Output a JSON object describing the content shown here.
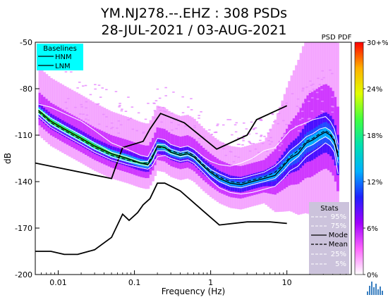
{
  "title_line1": "YM.NJ278.--.EHZ : 308 PSDs",
  "title_line2": "28-JUL-2021 / 03-AUG-2021",
  "chart_data": {
    "type": "heatmap",
    "xlabel": "Frequency (Hz)",
    "ylabel": "dB",
    "x_scale": "log",
    "xlim": [
      0.005,
      70
    ],
    "ylim": [
      -200,
      -50
    ],
    "x_ticks": [
      {
        "value": 0.01,
        "label": "0.01"
      },
      {
        "value": 0.1,
        "label": "0.1"
      },
      {
        "value": 1,
        "label": "1"
      },
      {
        "value": 10,
        "label": "10"
      }
    ],
    "y_ticks": [
      {
        "value": -50,
        "label": "-50"
      },
      {
        "value": -80,
        "label": "-80"
      },
      {
        "value": -110,
        "label": "-110"
      },
      {
        "value": -140,
        "label": "-140"
      },
      {
        "value": -170,
        "label": "-170"
      },
      {
        "value": -200,
        "label": "-200"
      }
    ],
    "colorbar": {
      "title": "PSD PDF",
      "range": [
        0,
        30
      ],
      "ticks": [
        "0%",
        "6%",
        "12%",
        "18%",
        "24%",
        "30+%"
      ],
      "colors": [
        "#ffffff",
        "#ff66ff",
        "#a000ff",
        "#2020ff",
        "#00b0ff",
        "#00e0b0",
        "#40ff40",
        "#e0ff00",
        "#ffb000",
        "#ff0000"
      ]
    },
    "baselines": {
      "title": "Baselines",
      "entries": [
        "HNM",
        "LNM"
      ],
      "background": "#00ffff",
      "HNM": [
        [
          0.005,
          -128
        ],
        [
          0.05,
          -138
        ],
        [
          0.07,
          -118
        ],
        [
          0.13,
          -114
        ],
        [
          0.16,
          -106
        ],
        [
          0.22,
          -96
        ],
        [
          0.45,
          -102
        ],
        [
          1.2,
          -119
        ],
        [
          3,
          -110
        ],
        [
          4,
          -100
        ],
        [
          10,
          -91
        ]
      ],
      "LNM": [
        [
          0.005,
          -185
        ],
        [
          0.008,
          -185
        ],
        [
          0.012,
          -187
        ],
        [
          0.018,
          -187
        ],
        [
          0.03,
          -184
        ],
        [
          0.05,
          -176
        ],
        [
          0.07,
          -161
        ],
        [
          0.085,
          -165
        ],
        [
          0.11,
          -160
        ],
        [
          0.13,
          -155
        ],
        [
          0.16,
          -151
        ],
        [
          0.2,
          -141
        ],
        [
          0.25,
          -141
        ],
        [
          0.4,
          -146
        ],
        [
          0.8,
          -159
        ],
        [
          1.3,
          -168
        ],
        [
          3,
          -166
        ],
        [
          6,
          -166
        ],
        [
          10,
          -167
        ]
      ]
    },
    "stats": {
      "title": "Stats",
      "entries": [
        "95%",
        "75%",
        "Mode",
        "Mean",
        "25%",
        "5%"
      ]
    },
    "series": [
      {
        "name": "Mode",
        "color": "#000000",
        "points": [
          [
            0.0055,
            -94
          ],
          [
            0.008,
            -101
          ],
          [
            0.012,
            -106
          ],
          [
            0.02,
            -112
          ],
          [
            0.03,
            -117
          ],
          [
            0.05,
            -122
          ],
          [
            0.08,
            -125
          ],
          [
            0.12,
            -128
          ],
          [
            0.15,
            -129
          ],
          [
            0.17,
            -125
          ],
          [
            0.2,
            -117
          ],
          [
            0.25,
            -118
          ],
          [
            0.3,
            -121
          ],
          [
            0.4,
            -123
          ],
          [
            0.5,
            -122
          ],
          [
            0.6,
            -124
          ],
          [
            0.8,
            -130
          ],
          [
            1,
            -134
          ],
          [
            1.3,
            -138
          ],
          [
            1.8,
            -141
          ],
          [
            2.5,
            -142
          ],
          [
            3.5,
            -140
          ],
          [
            5,
            -138
          ],
          [
            7,
            -136
          ],
          [
            9,
            -130
          ],
          [
            11,
            -125
          ],
          [
            14,
            -122
          ],
          [
            18,
            -115
          ],
          [
            22,
            -113
          ],
          [
            27,
            -110
          ],
          [
            32,
            -108
          ],
          [
            37,
            -110
          ],
          [
            42,
            -114
          ],
          [
            47,
            -124
          ]
        ]
      },
      {
        "name": "Mean",
        "color": "#000000",
        "points": [
          [
            0.0055,
            -95
          ],
          [
            0.008,
            -102
          ],
          [
            0.012,
            -107
          ],
          [
            0.02,
            -113
          ],
          [
            0.03,
            -118
          ],
          [
            0.05,
            -123
          ],
          [
            0.08,
            -126
          ],
          [
            0.12,
            -128
          ],
          [
            0.15,
            -128
          ],
          [
            0.17,
            -124
          ],
          [
            0.2,
            -118
          ],
          [
            0.25,
            -118
          ],
          [
            0.3,
            -120
          ],
          [
            0.4,
            -122
          ],
          [
            0.5,
            -121
          ],
          [
            0.6,
            -123
          ],
          [
            0.8,
            -129
          ],
          [
            1,
            -133
          ],
          [
            1.3,
            -137
          ],
          [
            1.8,
            -140
          ],
          [
            2.5,
            -141
          ],
          [
            3.5,
            -139
          ],
          [
            5,
            -137
          ],
          [
            7,
            -134
          ],
          [
            9,
            -129
          ],
          [
            11,
            -124
          ],
          [
            14,
            -120
          ],
          [
            18,
            -114
          ],
          [
            22,
            -112
          ],
          [
            27,
            -109
          ],
          [
            32,
            -107
          ],
          [
            37,
            -109
          ],
          [
            42,
            -113
          ],
          [
            47,
            -122
          ]
        ]
      },
      {
        "name": "95%",
        "color": "#ffffff",
        "points": [
          [
            0.0055,
            -90
          ],
          [
            0.008,
            -92
          ],
          [
            0.012,
            -96
          ],
          [
            0.02,
            -101
          ],
          [
            0.03,
            -107
          ],
          [
            0.05,
            -115
          ],
          [
            0.08,
            -119
          ],
          [
            0.12,
            -123
          ],
          [
            0.15,
            -124
          ],
          [
            0.17,
            -119
          ],
          [
            0.2,
            -112
          ],
          [
            0.25,
            -113
          ],
          [
            0.3,
            -116
          ],
          [
            0.4,
            -118
          ],
          [
            0.5,
            -117
          ],
          [
            0.6,
            -119
          ],
          [
            0.8,
            -124
          ],
          [
            1,
            -127
          ],
          [
            1.3,
            -129
          ],
          [
            1.8,
            -130
          ],
          [
            2.5,
            -128
          ],
          [
            3.5,
            -125
          ],
          [
            5,
            -120
          ],
          [
            7,
            -118
          ],
          [
            9,
            -112
          ],
          [
            11,
            -107
          ],
          [
            14,
            -104
          ],
          [
            18,
            -102
          ],
          [
            22,
            -100
          ],
          [
            27,
            -99
          ],
          [
            32,
            -98
          ],
          [
            37,
            -101
          ],
          [
            42,
            -106
          ],
          [
            47,
            -116
          ]
        ]
      },
      {
        "name": "75%",
        "color": "#ffffff",
        "points": [
          [
            0.0055,
            -93
          ],
          [
            0.008,
            -99
          ],
          [
            0.012,
            -104
          ],
          [
            0.02,
            -110
          ],
          [
            0.03,
            -115
          ],
          [
            0.05,
            -121
          ],
          [
            0.08,
            -124
          ],
          [
            0.12,
            -127
          ],
          [
            0.15,
            -127
          ],
          [
            0.17,
            -122
          ],
          [
            0.2,
            -116
          ],
          [
            0.25,
            -116
          ],
          [
            0.3,
            -119
          ],
          [
            0.4,
            -121
          ],
          [
            0.5,
            -120
          ],
          [
            0.6,
            -122
          ],
          [
            0.8,
            -128
          ],
          [
            1,
            -132
          ],
          [
            1.3,
            -135
          ],
          [
            1.8,
            -138
          ],
          [
            2.5,
            -138
          ],
          [
            3.5,
            -136
          ],
          [
            5,
            -134
          ],
          [
            7,
            -130
          ],
          [
            9,
            -125
          ],
          [
            11,
            -120
          ],
          [
            14,
            -116
          ],
          [
            18,
            -111
          ],
          [
            22,
            -109
          ],
          [
            27,
            -106
          ],
          [
            32,
            -105
          ],
          [
            37,
            -107
          ],
          [
            42,
            -111
          ],
          [
            47,
            -120
          ]
        ]
      },
      {
        "name": "25%",
        "color": "#ffffff",
        "points": [
          [
            0.0055,
            -96
          ],
          [
            0.008,
            -103
          ],
          [
            0.012,
            -108
          ],
          [
            0.02,
            -114
          ],
          [
            0.03,
            -119
          ],
          [
            0.05,
            -124
          ],
          [
            0.08,
            -127
          ],
          [
            0.12,
            -129
          ],
          [
            0.15,
            -130
          ],
          [
            0.17,
            -127
          ],
          [
            0.2,
            -120
          ],
          [
            0.25,
            -120
          ],
          [
            0.3,
            -122
          ],
          [
            0.4,
            -124
          ],
          [
            0.5,
            -123
          ],
          [
            0.6,
            -125
          ],
          [
            0.8,
            -131
          ],
          [
            1,
            -136
          ],
          [
            1.3,
            -140
          ],
          [
            1.8,
            -143
          ],
          [
            2.5,
            -144
          ],
          [
            3.5,
            -142
          ],
          [
            5,
            -140
          ],
          [
            7,
            -138
          ],
          [
            9,
            -133
          ],
          [
            11,
            -128
          ],
          [
            14,
            -124
          ],
          [
            18,
            -118
          ],
          [
            22,
            -116
          ],
          [
            27,
            -113
          ],
          [
            32,
            -111
          ],
          [
            37,
            -113
          ],
          [
            42,
            -117
          ],
          [
            47,
            -128
          ]
        ]
      },
      {
        "name": "5%",
        "color": "#ffffff",
        "points": [
          [
            0.0055,
            -98
          ],
          [
            0.008,
            -105
          ],
          [
            0.012,
            -110
          ],
          [
            0.02,
            -116
          ],
          [
            0.03,
            -121
          ],
          [
            0.05,
            -126
          ],
          [
            0.08,
            -129
          ],
          [
            0.12,
            -131
          ],
          [
            0.15,
            -132
          ],
          [
            0.17,
            -130
          ],
          [
            0.2,
            -124
          ],
          [
            0.25,
            -123
          ],
          [
            0.3,
            -125
          ],
          [
            0.4,
            -127
          ],
          [
            0.5,
            -126
          ],
          [
            0.6,
            -128
          ],
          [
            0.8,
            -134
          ],
          [
            1,
            -139
          ],
          [
            1.3,
            -144
          ],
          [
            1.8,
            -147
          ],
          [
            2.5,
            -148
          ],
          [
            3.5,
            -147
          ],
          [
            5,
            -145
          ],
          [
            7,
            -143
          ],
          [
            9,
            -138
          ],
          [
            11,
            -133
          ],
          [
            14,
            -130
          ],
          [
            18,
            -124
          ],
          [
            22,
            -121
          ],
          [
            27,
            -118
          ],
          [
            32,
            -115
          ],
          [
            37,
            -117
          ],
          [
            42,
            -121
          ],
          [
            47,
            -135
          ]
        ]
      }
    ]
  }
}
